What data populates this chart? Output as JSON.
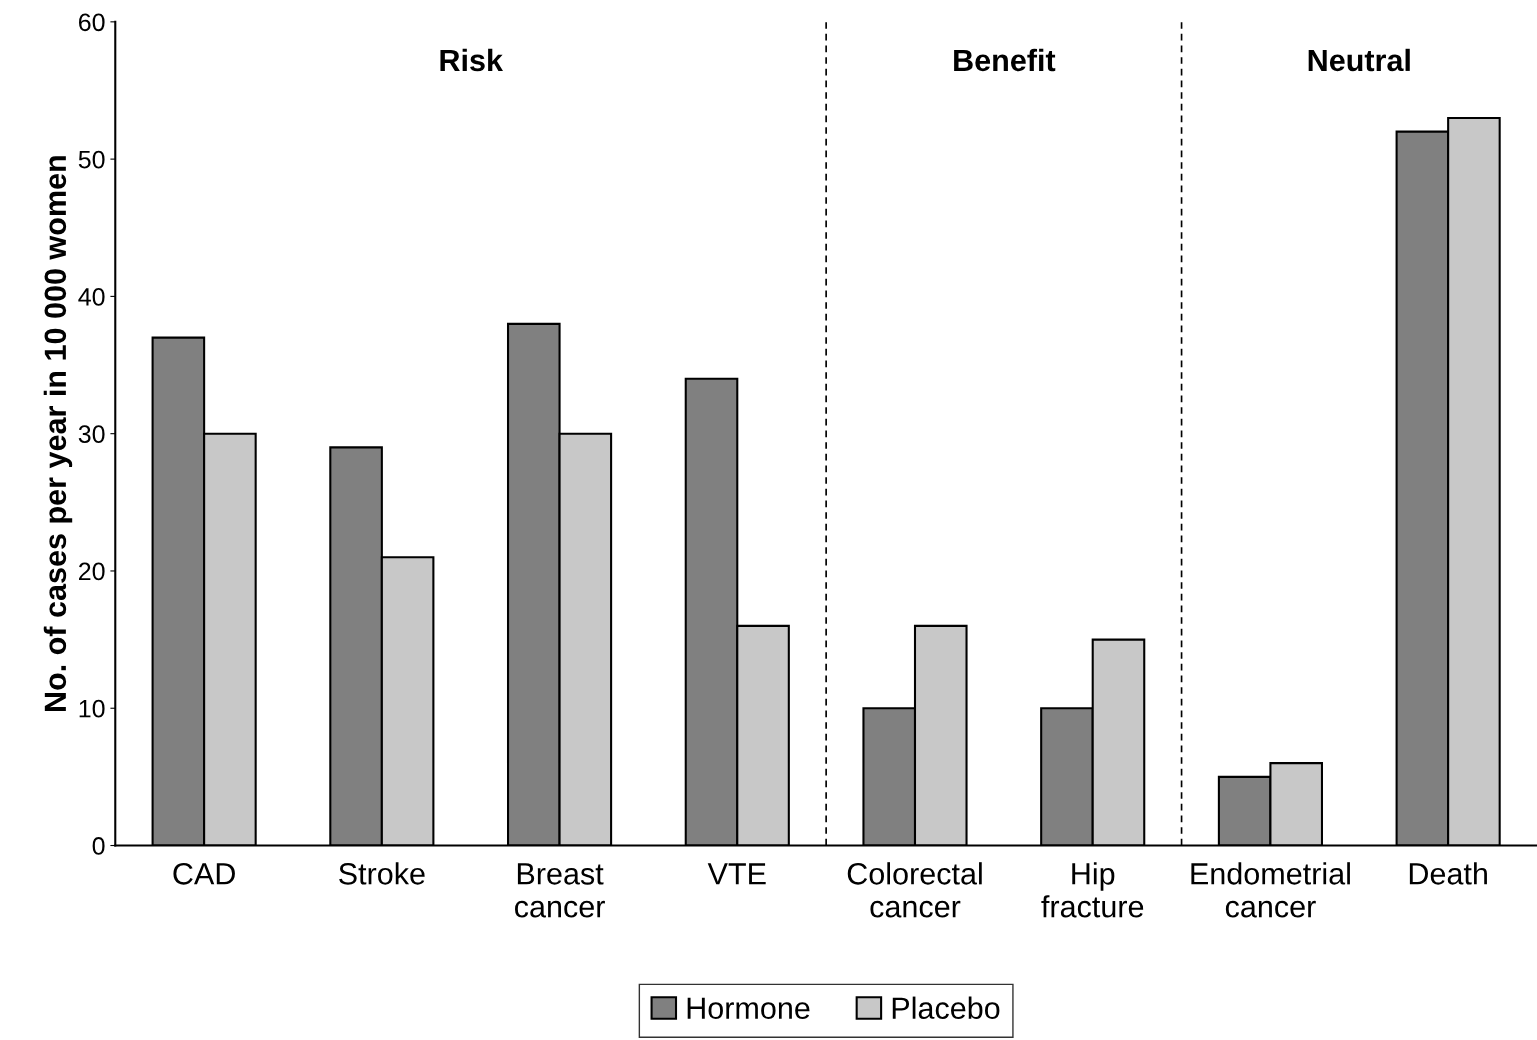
{
  "chart_data": {
    "type": "bar",
    "ylabel": "No. of cases per year in 10 000 women",
    "categories": [
      "CAD",
      "Stroke",
      "Breast\ncancer",
      "VTE",
      "Colorectal\ncancer",
      "Hip\nfracture",
      "Endometrial\ncancer",
      "Death"
    ],
    "series": [
      {
        "name": "Hormone",
        "color": "#808080",
        "values": [
          37,
          29,
          38,
          34,
          10,
          10,
          5,
          52
        ]
      },
      {
        "name": "Placebo",
        "color": "#c8c8c8",
        "values": [
          30,
          21,
          30,
          16,
          16,
          15,
          6,
          53
        ]
      }
    ],
    "ylim": [
      0,
      60
    ],
    "yticks": [
      0,
      10,
      20,
      30,
      40,
      50,
      60
    ],
    "annotations": [
      "Risk",
      "Benefit",
      "Neutral"
    ],
    "legend": "bottom",
    "grid": false
  }
}
